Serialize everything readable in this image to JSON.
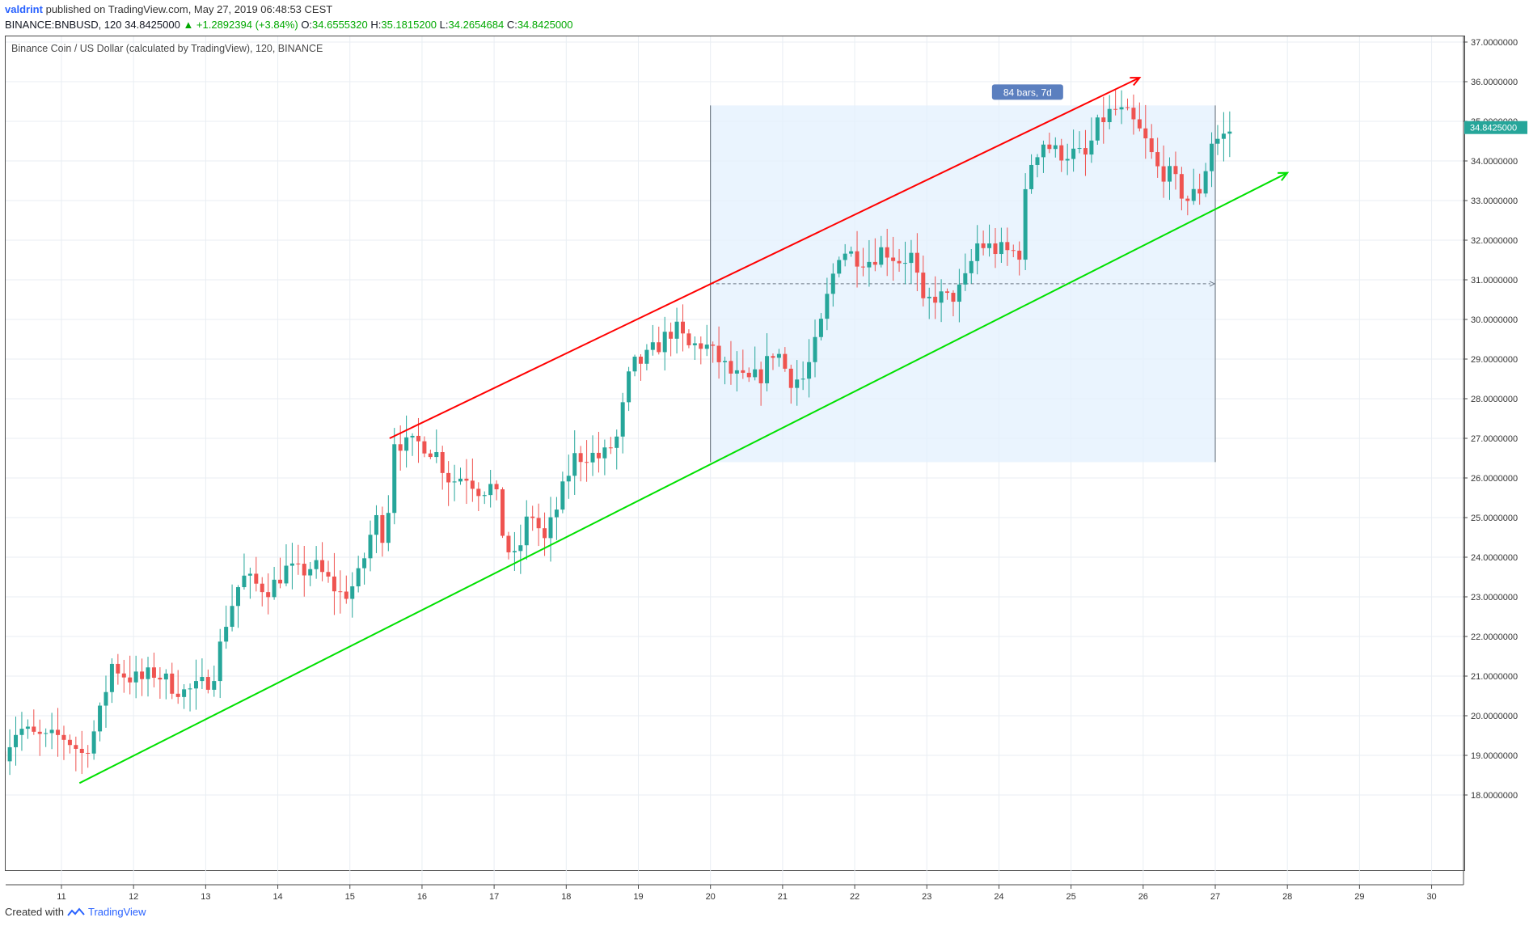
{
  "header": {
    "author": "valdrint",
    "published_text": "published on TradingView.com, May 27, 2019 06:48:53 CEST"
  },
  "ohlc": {
    "symbol": "BINANCE:BNBUSD, 120",
    "last": "34.8425000",
    "change": "▲ +1.2892394 (+3.84%)",
    "open_label": "O:",
    "open": "34.6555320",
    "high_label": "H:",
    "high": "35.1815200",
    "low_label": "L:",
    "low": "34.2654684",
    "close_label": "C:",
    "close": "34.8425000"
  },
  "legend": {
    "title": "Binance Coin / US Dollar (calculated by TradingView), 120, BINANCE"
  },
  "footer": {
    "created_with": "Created with",
    "brand": "TradingView"
  },
  "chart_data": {
    "type": "candlestick",
    "title": "Binance Coin / US Dollar (calculated by TradingView), 120, BINANCE",
    "x_ticks": [
      "11",
      "12",
      "13",
      "14",
      "15",
      "16",
      "17",
      "18",
      "19",
      "20",
      "21",
      "22",
      "23",
      "24",
      "25",
      "26",
      "27",
      "28",
      "29",
      "30"
    ],
    "y_ticks": [
      "18.0000000",
      "19.0000000",
      "20.0000000",
      "21.0000000",
      "22.0000000",
      "23.0000000",
      "24.0000000",
      "25.0000000",
      "26.0000000",
      "27.0000000",
      "28.0000000",
      "29.0000000",
      "30.0000000",
      "31.0000000",
      "32.0000000",
      "33.0000000",
      "34.0000000",
      "35.0000000",
      "36.0000000",
      "37.0000000"
    ],
    "ylim": [
      17.0,
      37.0
    ],
    "xlim": [
      10.2,
      30.5
    ],
    "grid": true,
    "last_price_label": "34.8425000",
    "colors": {
      "up": "#26a69a",
      "down": "#ef5350",
      "upper_trend": "#ff0000",
      "lower_trend": "#00e000",
      "range_box": "#e3f0fd",
      "range_label_bg": "#5b7fbf",
      "price_label_bg": "#26a69a"
    },
    "price_points": [
      [
        10.2,
        19.1
      ],
      [
        10.4,
        19.7
      ],
      [
        10.6,
        19.5
      ],
      [
        10.8,
        19.4
      ],
      [
        11.0,
        19.5
      ],
      [
        11.15,
        19.3
      ],
      [
        11.3,
        19.0
      ],
      [
        11.5,
        19.8
      ],
      [
        11.7,
        21.3
      ],
      [
        11.9,
        21.0
      ],
      [
        12.1,
        20.9
      ],
      [
        12.3,
        21.1
      ],
      [
        12.5,
        20.8
      ],
      [
        12.7,
        20.6
      ],
      [
        12.9,
        20.7
      ],
      [
        13.1,
        21.0
      ],
      [
        13.3,
        22.5
      ],
      [
        13.5,
        23.5
      ],
      [
        13.7,
        23.3
      ],
      [
        13.9,
        23.2
      ],
      [
        14.1,
        23.7
      ],
      [
        14.3,
        23.6
      ],
      [
        14.5,
        23.8
      ],
      [
        14.7,
        23.4
      ],
      [
        14.9,
        23.0
      ],
      [
        15.1,
        23.4
      ],
      [
        15.2,
        24.0
      ],
      [
        15.35,
        25.0
      ],
      [
        15.5,
        24.4
      ],
      [
        15.6,
        27.0
      ],
      [
        15.8,
        26.8
      ],
      [
        16.0,
        26.9
      ],
      [
        16.2,
        26.6
      ],
      [
        16.4,
        25.9
      ],
      [
        16.6,
        26.1
      ],
      [
        16.8,
        25.7
      ],
      [
        17.0,
        25.8
      ],
      [
        17.15,
        24.3
      ],
      [
        17.3,
        23.9
      ],
      [
        17.5,
        25.2
      ],
      [
        17.7,
        24.4
      ],
      [
        17.9,
        25.4
      ],
      [
        18.1,
        26.5
      ],
      [
        18.3,
        26.6
      ],
      [
        18.5,
        26.5
      ],
      [
        18.7,
        27.0
      ],
      [
        18.9,
        28.8
      ],
      [
        19.1,
        29.0
      ],
      [
        19.3,
        29.4
      ],
      [
        19.5,
        29.8
      ],
      [
        19.7,
        29.3
      ],
      [
        19.9,
        29.4
      ],
      [
        20.1,
        29.0
      ],
      [
        20.3,
        28.6
      ],
      [
        20.5,
        28.4
      ],
      [
        20.7,
        28.6
      ],
      [
        20.9,
        29.3
      ],
      [
        21.1,
        28.5
      ],
      [
        21.3,
        28.5
      ],
      [
        21.5,
        29.6
      ],
      [
        21.65,
        30.8
      ],
      [
        21.8,
        31.8
      ],
      [
        22.0,
        31.6
      ],
      [
        22.2,
        31.5
      ],
      [
        22.4,
        31.8
      ],
      [
        22.6,
        31.5
      ],
      [
        22.8,
        31.6
      ],
      [
        22.95,
        30.3
      ],
      [
        23.1,
        30.6
      ],
      [
        23.3,
        30.5
      ],
      [
        23.5,
        30.8
      ],
      [
        23.7,
        31.9
      ],
      [
        23.9,
        31.8
      ],
      [
        24.1,
        31.7
      ],
      [
        24.3,
        31.7
      ],
      [
        24.4,
        33.8
      ],
      [
        24.6,
        34.5
      ],
      [
        24.8,
        34.2
      ],
      [
        25.0,
        34.2
      ],
      [
        25.2,
        34.1
      ],
      [
        25.4,
        35.0
      ],
      [
        25.6,
        35.3
      ],
      [
        25.8,
        35.1
      ],
      [
        26.0,
        34.6
      ],
      [
        26.2,
        33.8
      ],
      [
        26.4,
        33.6
      ],
      [
        26.6,
        33.0
      ],
      [
        26.8,
        33.3
      ],
      [
        26.95,
        34.5
      ],
      [
        27.1,
        34.6
      ],
      [
        27.25,
        34.84
      ]
    ],
    "annotations": {
      "upper_trend": {
        "start": [
          15.55,
          27.0
        ],
        "end": [
          25.95,
          36.1
        ]
      },
      "lower_trend": {
        "start": [
          11.25,
          18.3
        ],
        "end": [
          28.0,
          33.7
        ]
      },
      "date_range": {
        "x_start": 20.0,
        "x_end": 27.0,
        "y_low": 26.4,
        "y_high": 35.4,
        "y_mid": 30.9,
        "label": "84 bars, 7d"
      }
    }
  }
}
